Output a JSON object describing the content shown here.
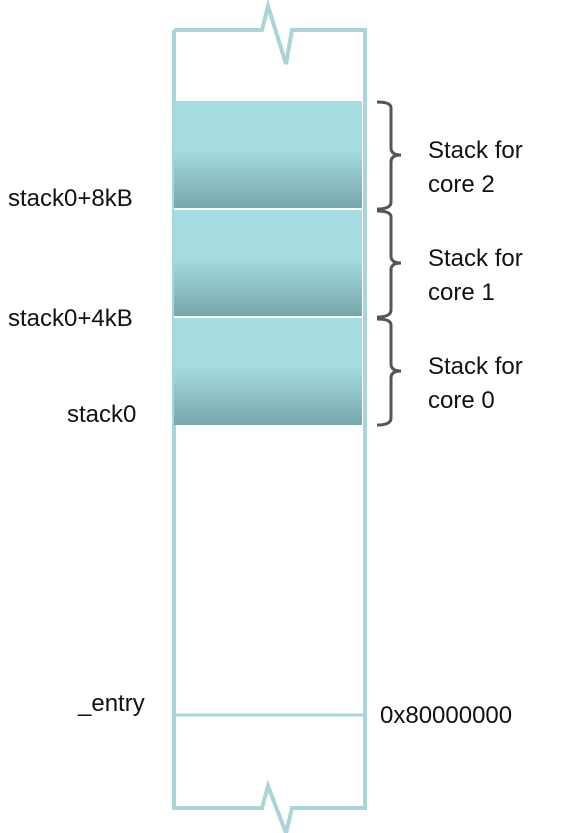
{
  "colors": {
    "outline": "#a9d4d8",
    "stack_top": "#a6dbe1",
    "stack_bottom": "#77a7ab",
    "brace": "#555555",
    "text": "#111111"
  },
  "address_labels": {
    "stack0_8kb": "stack0+8kB",
    "stack0_4kb": "stack0+4kB",
    "stack0": "stack0",
    "entry": "_entry",
    "entry_address": "0x80000000"
  },
  "stacks": [
    {
      "label": "Stack for\ncore 2"
    },
    {
      "label": "Stack for\ncore 1"
    },
    {
      "label": "Stack for\ncore 0"
    }
  ]
}
